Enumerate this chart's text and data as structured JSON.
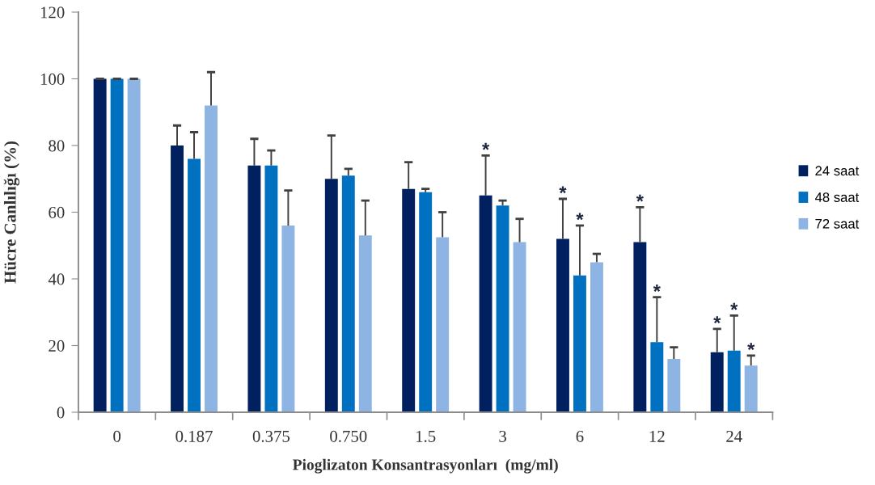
{
  "chart_data": {
    "type": "bar",
    "xlabel": "Pioglizaton Konsantrasyonları  (mg/ml)",
    "ylabel": "Hücre Canlılığı (%)",
    "categories": [
      "0",
      "0.187",
      "0.375",
      "0.750",
      "1.5",
      "3",
      "6",
      "12",
      "24"
    ],
    "series": [
      {
        "name": "24 saat",
        "color": "#002060",
        "values": [
          100,
          80,
          74,
          70,
          67,
          65,
          52,
          51,
          18
        ],
        "errors": [
          [
            100,
            100
          ],
          [
            80,
            86
          ],
          [
            74,
            82
          ],
          [
            70,
            83
          ],
          [
            67,
            75
          ],
          [
            65,
            77
          ],
          [
            52,
            64
          ],
          [
            51,
            61.5
          ],
          [
            18,
            25
          ]
        ],
        "value_labels": [
          null,
          null,
          null,
          null,
          null,
          "*",
          "*",
          "*",
          "*"
        ]
      },
      {
        "name": "48 saat",
        "color": "#0070c0",
        "values": [
          100,
          76,
          74,
          71,
          66,
          62,
          41,
          21,
          18.5
        ],
        "errors": [
          [
            100,
            100
          ],
          [
            76,
            84
          ],
          [
            74,
            78.5
          ],
          [
            71,
            73
          ],
          [
            66,
            67
          ],
          [
            62,
            63.5
          ],
          [
            41,
            56
          ],
          [
            21,
            34.5
          ],
          [
            18.5,
            29
          ]
        ],
        "value_labels": [
          null,
          null,
          null,
          null,
          null,
          null,
          "*",
          "*",
          "*"
        ]
      },
      {
        "name": "72 saat",
        "color": "#8db4e2",
        "values": [
          100,
          92,
          56,
          53,
          52.5,
          51,
          45,
          16,
          14
        ],
        "errors": [
          [
            100,
            100
          ],
          [
            92,
            102
          ],
          [
            56,
            66.5
          ],
          [
            53,
            63.5
          ],
          [
            52.5,
            60
          ],
          [
            51,
            58
          ],
          [
            45,
            47.5
          ],
          [
            16,
            19.5
          ],
          [
            14,
            17
          ]
        ],
        "value_labels": [
          null,
          null,
          null,
          null,
          null,
          null,
          null,
          null,
          "*"
        ]
      }
    ],
    "ylim": [
      0,
      120
    ],
    "yticks": [
      0,
      20,
      40,
      60,
      80,
      100,
      120
    ],
    "grid": false,
    "legend": "right"
  }
}
